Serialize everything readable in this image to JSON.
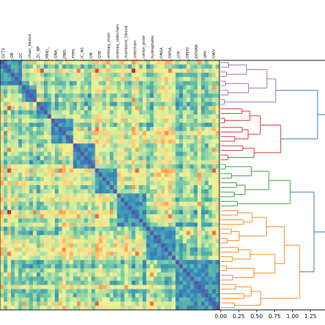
{
  "chart_data": [
    {
      "type": "heatmap",
      "title": "",
      "description_of_axes": "",
      "column_labels_visible": [
        "OCTS",
        "OB",
        "OC",
        "chain_hbond",
        "ZC_BP",
        "MHO_",
        "QNA_",
        "JTKO",
        "TTPS",
        "IC_NS",
        "ON",
        "OTE",
        "entropy_main",
        "entropy_sidechain",
        "mainbone_hbond",
        "sidechain",
        "cation_polar",
        "hydrophobic",
        "ONSA",
        "OHSA",
        "OTF",
        "OPOG",
        "DOVAN",
        "SPO",
        "OWV"
      ],
      "n_rows": 60,
      "n_cols": 60,
      "colormap": "Spectral_r",
      "block_clusters_on_diagonal": [
        "blue",
        "blue",
        "blue",
        "blue",
        "blue"
      ]
    },
    {
      "type": "dendrogram",
      "orientation": "left",
      "xlabel": "",
      "x_ticks": [
        "0.00",
        "0.25",
        "0.50",
        "0.75",
        "1.00",
        "1.25",
        "1"
      ],
      "xlim": [
        0,
        1.5
      ],
      "clusters": [
        {
          "color": "#9467bd",
          "leaves": 10
        },
        {
          "color": "#d62728",
          "leaves": 12
        },
        {
          "color": "#2ca02c",
          "leaves": 10
        },
        {
          "color": "#ff7f0e",
          "leaves": 22
        }
      ],
      "link_color": "#1f77b4"
    }
  ]
}
